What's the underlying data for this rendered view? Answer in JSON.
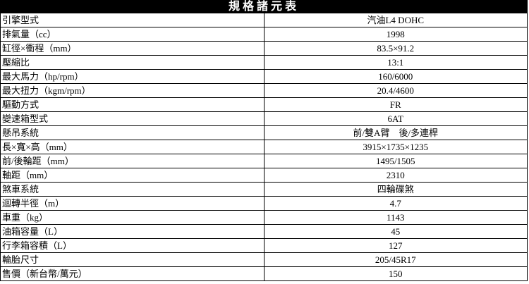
{
  "table": {
    "title": "規格諸元表",
    "rows": [
      {
        "label": "引擎型式",
        "value": "汽油L4 DOHC"
      },
      {
        "label": "排氣量（cc）",
        "value": "1998"
      },
      {
        "label": "缸徑×衝程（mm）",
        "value": "83.5×91.2"
      },
      {
        "label": "壓縮比",
        "value": "13:1"
      },
      {
        "label": "最大馬力（hp/rpm）",
        "value": "160/6000"
      },
      {
        "label": "最大扭力（kgm/rpm）",
        "value": "20.4/4600"
      },
      {
        "label": "驅動方式",
        "value": "FR"
      },
      {
        "label": "變速箱型式",
        "value": "6AT"
      },
      {
        "label": "懸吊系統",
        "value": "前/雙A臂　後/多連桿"
      },
      {
        "label": "長×寬×高（mm）",
        "value": "3915×1735×1235"
      },
      {
        "label": "前/後輪距（mm）",
        "value": "1495/1505"
      },
      {
        "label": "軸距（mm）",
        "value": "2310"
      },
      {
        "label": "煞車系統",
        "value": "四輪碟煞"
      },
      {
        "label": "迴轉半徑（m）",
        "value": "4.7"
      },
      {
        "label": "車重（kg）",
        "value": "1143"
      },
      {
        "label": "油箱容量（L）",
        "value": "45"
      },
      {
        "label": "行李箱容積（L）",
        "value": "127"
      },
      {
        "label": "輪胎尺寸",
        "value": "205/45R17"
      },
      {
        "label": "售價（新台幣/萬元）",
        "value": "150"
      }
    ]
  }
}
